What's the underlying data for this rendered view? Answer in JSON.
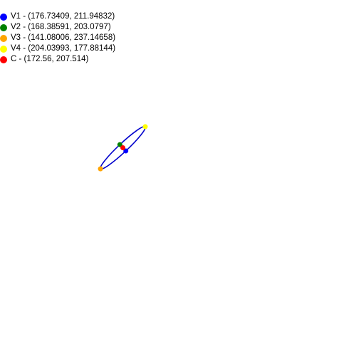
{
  "legend": [
    {
      "id": "V1",
      "label": "V1 - (176.73409, 211.94832)",
      "color": "#0000ff"
    },
    {
      "id": "V2",
      "label": "V2 - (168.38591, 203.0797)",
      "color": "#008000"
    },
    {
      "id": "V3",
      "label": "V3 - (141.08006, 237.14658)",
      "color": "#ffa500"
    },
    {
      "id": "V4",
      "label": "V4 - (204.03993, 177.88144)",
      "color": "#ffff00"
    },
    {
      "id": "C",
      "label": "C - (172.56, 207.514)",
      "color": "#ff0000"
    }
  ],
  "ellipse": {
    "stroke": "#0000cc"
  },
  "points": [
    {
      "id": "V1",
      "x": 176.73409,
      "y": 211.94832,
      "color": "#0000ff"
    },
    {
      "id": "V2",
      "x": 168.38591,
      "y": 203.0797,
      "color": "#008000"
    },
    {
      "id": "V3",
      "x": 141.08006,
      "y": 237.14658,
      "color": "#ffa500"
    },
    {
      "id": "V4",
      "x": 204.03993,
      "y": 177.88144,
      "color": "#ffff00"
    },
    {
      "id": "C",
      "x": 172.56,
      "y": 207.514,
      "color": "#ff0000"
    }
  ]
}
